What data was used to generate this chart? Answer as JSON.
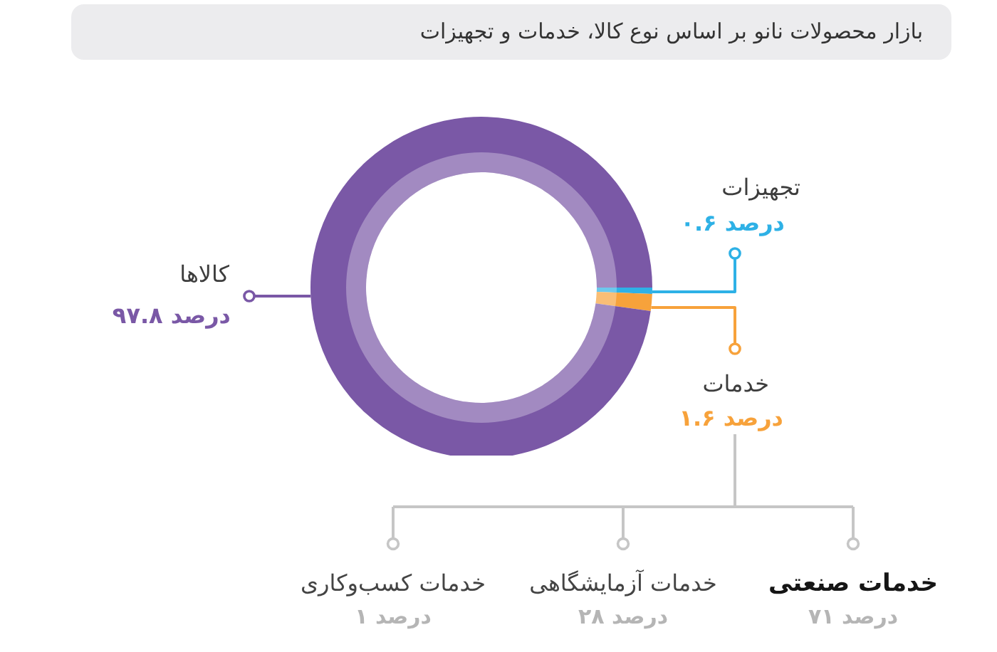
{
  "chart_data": [
    {
      "type": "donut",
      "title": "بازار محصولات نانو بر اساس نوع کالا، خدمات و تجهیزات",
      "categories": [
        "تجهیزات",
        "خدمات",
        "کالاها"
      ],
      "values": [
        0.6,
        1.6,
        97.8
      ],
      "colors": [
        "#2eb1e6",
        "#f7a23b",
        "#7a58a6"
      ],
      "value_labels": [
        "۰.۶ درصد",
        "۱.۶ درصد",
        "۹۷.۸ درصد"
      ]
    },
    {
      "type": "other",
      "categories": [
        "خدمات کسب‌وکاری",
        "خدمات آزمایشگاهی",
        "خدمات صنعتی"
      ],
      "values": [
        1,
        28,
        71
      ],
      "value_labels": [
        "۱ درصد",
        "۲۸ درصد",
        "۷۱ درصد"
      ]
    }
  ]
}
